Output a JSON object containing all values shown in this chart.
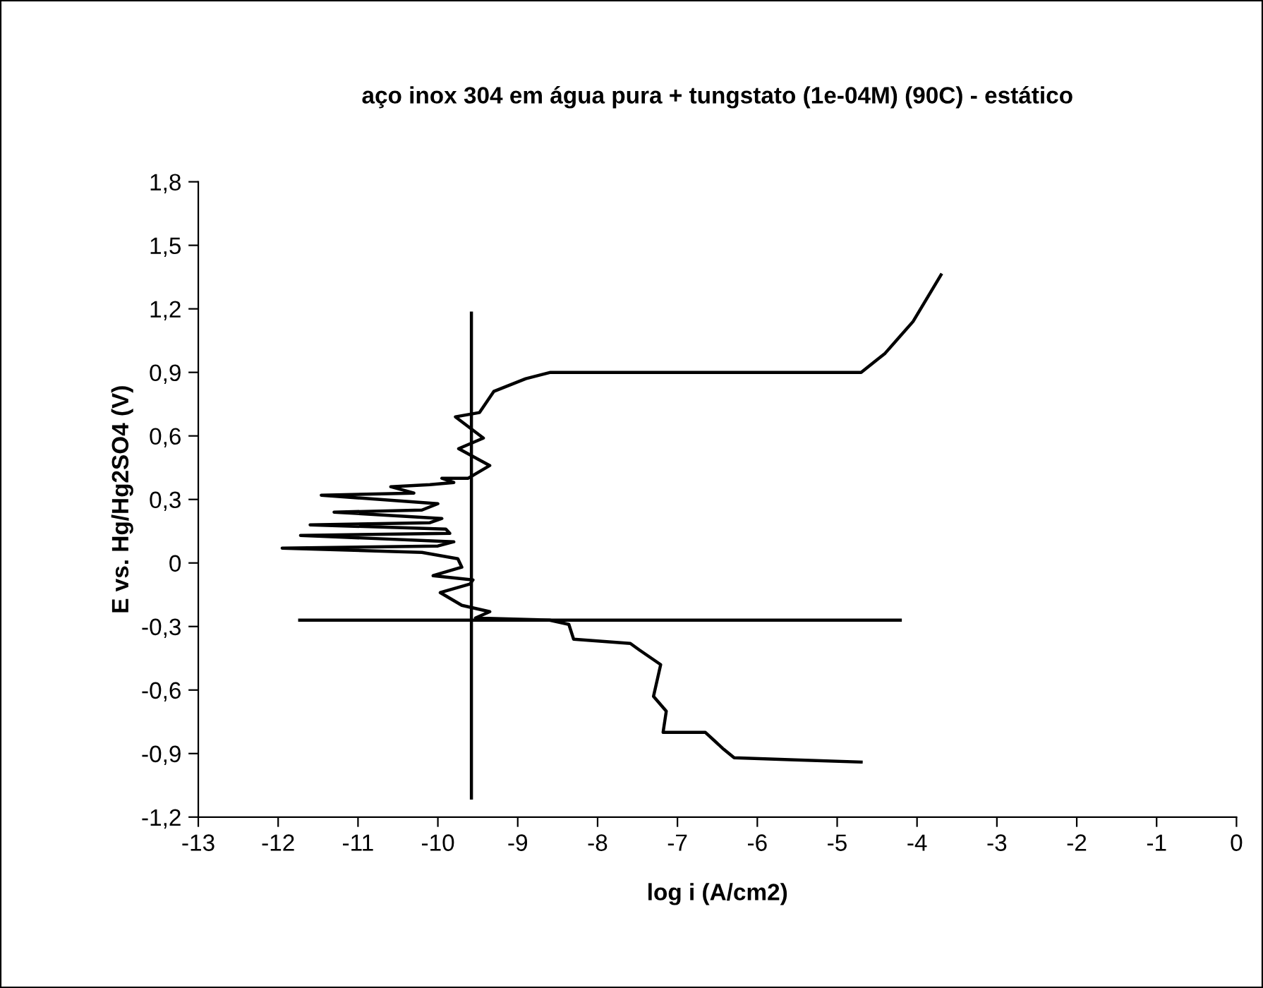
{
  "chart_data": {
    "type": "line",
    "title": "aço inox 304 em água pura + tungstato (1e-04M) (90C) - estático",
    "xlabel": "log i (A/cm2)",
    "ylabel": "E vs. Hg/Hg2SO4 (V)",
    "xlim": [
      -13,
      0
    ],
    "xticks": [
      -13,
      -12,
      -11,
      -10,
      -9,
      -8,
      -7,
      -6,
      -5,
      -4,
      -3,
      -2,
      -1,
      0
    ],
    "ylim": [
      -1.2,
      1.8
    ],
    "yticks": [
      {
        "value": -1.2,
        "label": "-1,2"
      },
      {
        "value": -0.9,
        "label": "-0,9"
      },
      {
        "value": -0.6,
        "label": "-0,6"
      },
      {
        "value": -0.3,
        "label": "-0,3"
      },
      0,
      {
        "value": 0.3,
        "label": "0,3"
      },
      {
        "value": 0.6,
        "label": "0,6"
      },
      {
        "value": 0.9,
        "label": "0,9"
      },
      {
        "value": 1.2,
        "label": "1,2"
      },
      {
        "value": 1.5,
        "label": "1,5"
      },
      {
        "value": 1.8,
        "label": "1,8"
      }
    ],
    "grid": false,
    "legend": false,
    "marker": "none",
    "line_style": "solid",
    "series": [
      {
        "color": "#000000",
        "x": [
          -4.7,
          -5.53,
          -6.29,
          -6.42,
          -6.65,
          -7.18,
          -7.14,
          -7.3,
          -7.21,
          -7.48,
          -7.59,
          -8.3,
          -8.36,
          -8.6,
          -9.53,
          -9.35,
          -9.7,
          -9.97,
          -9.6,
          -9.56,
          -10.06,
          -9.7,
          -9.75,
          -10.2,
          -11.95,
          -10.0,
          -9.8,
          -11.72,
          -9.85,
          -9.9,
          -11.6,
          -10.1,
          -9.95,
          -11.3,
          -10.2,
          -10.0,
          -11.46,
          -10.3,
          -10.59,
          -10.1,
          -9.8,
          -9.95,
          -9.62,
          -9.35,
          -9.74,
          -9.43,
          -9.78,
          -9.48,
          -9.3,
          -8.9,
          -8.59,
          -4.7,
          -4.4,
          -4.05,
          -3.7
        ],
        "values": [
          -0.94,
          -0.93,
          -0.92,
          -0.88,
          -0.8,
          -0.8,
          -0.7,
          -0.63,
          -0.48,
          -0.41,
          -0.38,
          -0.36,
          -0.29,
          -0.27,
          -0.26,
          -0.23,
          -0.2,
          -0.14,
          -0.1,
          -0.08,
          -0.06,
          -0.02,
          0.02,
          0.05,
          0.07,
          0.08,
          0.1,
          0.13,
          0.14,
          0.16,
          0.18,
          0.19,
          0.21,
          0.24,
          0.25,
          0.28,
          0.32,
          0.33,
          0.36,
          0.37,
          0.38,
          0.4,
          0.4,
          0.46,
          0.54,
          0.59,
          0.69,
          0.71,
          0.81,
          0.87,
          0.9,
          0.9,
          0.99,
          1.14,
          1.36
        ]
      },
      {
        "color": "#000000",
        "x": [
          -9.58,
          -9.58
        ],
        "values": [
          1.18,
          -1.11
        ]
      },
      {
        "color": "#000000",
        "x": [
          -11.73,
          -4.21
        ],
        "values": [
          -0.27,
          -0.27
        ]
      }
    ]
  }
}
